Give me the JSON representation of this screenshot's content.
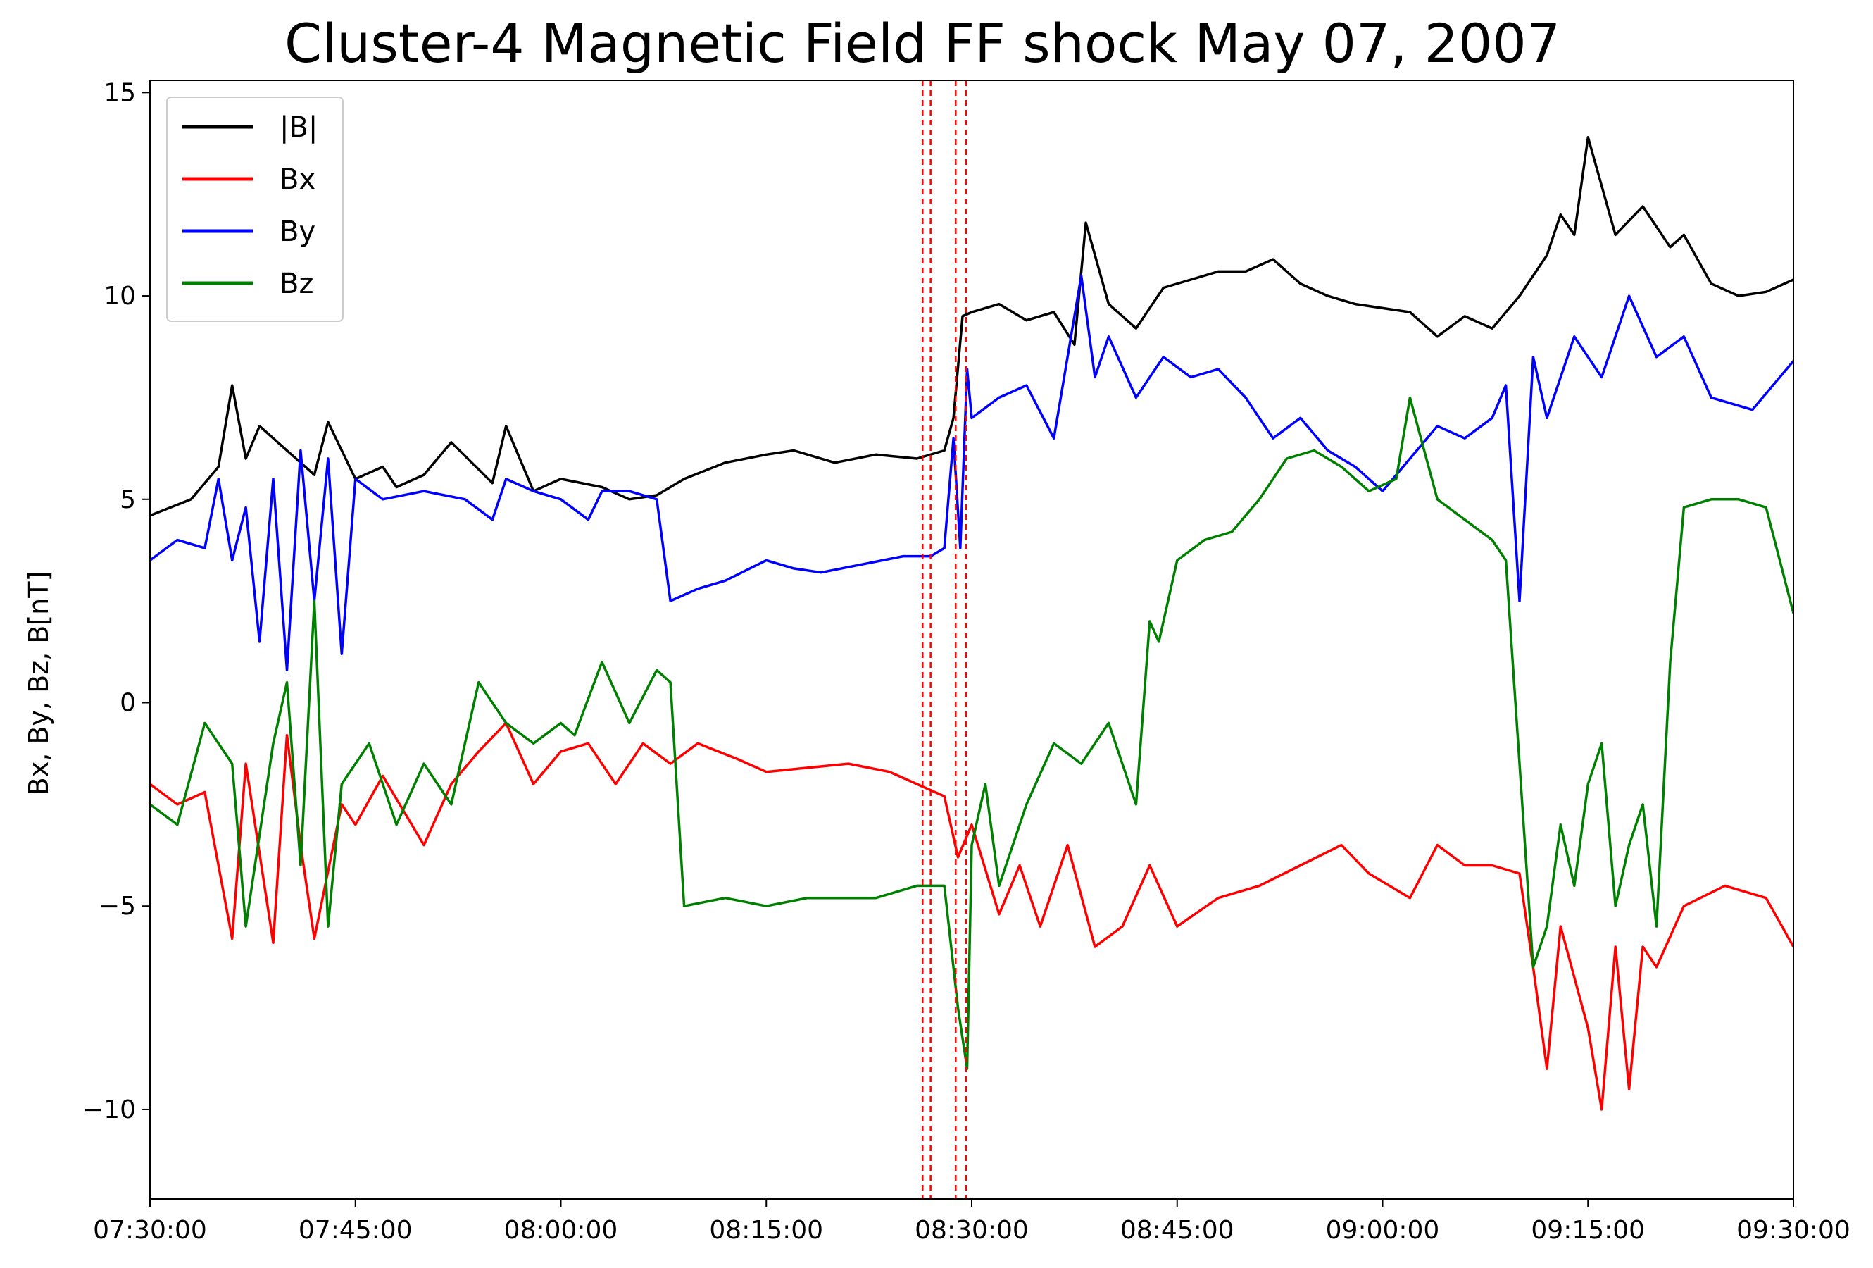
{
  "chart_data": {
    "type": "line",
    "title": "Cluster-4 Magnetic Field FF shock May 07, 2007",
    "xlabel": "",
    "ylabel": "Bx, By, Bz, B[nT]",
    "xlim": [
      "07:30:00",
      "09:30:00"
    ],
    "ylim": [
      -12.2,
      15.3
    ],
    "x_ticks": [
      "07:30:00",
      "07:45:00",
      "08:00:00",
      "08:15:00",
      "08:30:00",
      "08:45:00",
      "09:00:00",
      "09:15:00",
      "09:30:00"
    ],
    "y_ticks": [
      15,
      10,
      5,
      0,
      -5,
      -10
    ],
    "y_tick_labels": [
      "15",
      "10",
      "5",
      "0",
      "−5",
      "−10"
    ],
    "grid": false,
    "legend_position": "top-left",
    "vlines": {
      "color": "#ff0000",
      "style": "dashed",
      "x": [
        "08:26:25",
        "08:27:00",
        "08:28:50",
        "08:29:35"
      ]
    },
    "series": [
      {
        "name": "|B|",
        "color": "#000000",
        "x": [
          "07:30:00",
          "07:33:00",
          "07:35:00",
          "07:36:00",
          "07:37:00",
          "07:38:00",
          "07:40:00",
          "07:42:00",
          "07:43:00",
          "07:45:00",
          "07:47:00",
          "07:48:00",
          "07:50:00",
          "07:52:00",
          "07:55:00",
          "07:56:00",
          "07:58:00",
          "08:00:00",
          "08:03:00",
          "08:05:00",
          "08:07:00",
          "08:09:00",
          "08:12:00",
          "08:15:00",
          "08:17:00",
          "08:20:00",
          "08:23:00",
          "08:26:00",
          "08:28:00",
          "08:28:40",
          "08:29:20",
          "08:30:00",
          "08:32:00",
          "08:34:00",
          "08:36:00",
          "08:37:30",
          "08:38:20",
          "08:40:00",
          "08:42:00",
          "08:44:00",
          "08:46:00",
          "08:48:00",
          "08:50:00",
          "08:52:00",
          "08:54:00",
          "08:56:00",
          "08:58:00",
          "09:00:00",
          "09:02:00",
          "09:04:00",
          "09:06:00",
          "09:08:00",
          "09:10:00",
          "09:12:00",
          "09:13:00",
          "09:14:00",
          "09:15:00",
          "09:17:00",
          "09:19:00",
          "09:21:00",
          "09:22:00",
          "09:24:00",
          "09:26:00",
          "09:28:00",
          "09:30:00"
        ],
        "values": [
          4.6,
          5.0,
          5.8,
          7.8,
          6.0,
          6.8,
          6.2,
          5.6,
          6.9,
          5.5,
          5.8,
          5.3,
          5.6,
          6.4,
          5.4,
          6.8,
          5.2,
          5.5,
          5.3,
          5.0,
          5.1,
          5.5,
          5.9,
          6.1,
          6.2,
          5.9,
          6.1,
          6.0,
          6.2,
          7.0,
          9.5,
          9.6,
          9.8,
          9.4,
          9.6,
          8.8,
          11.8,
          9.8,
          9.2,
          10.2,
          10.4,
          10.6,
          10.6,
          10.9,
          10.3,
          10.0,
          9.8,
          9.7,
          9.6,
          9.0,
          9.5,
          9.2,
          10.0,
          11.0,
          12.0,
          11.5,
          13.9,
          11.5,
          12.2,
          11.2,
          11.5,
          10.3,
          10.0,
          10.1,
          10.4
        ]
      },
      {
        "name": "Bx",
        "color": "#ff0000",
        "x": [
          "07:30:00",
          "07:32:00",
          "07:34:00",
          "07:36:00",
          "07:37:00",
          "07:39:00",
          "07:40:00",
          "07:41:00",
          "07:42:00",
          "07:44:00",
          "07:45:00",
          "07:47:00",
          "07:50:00",
          "07:52:00",
          "07:54:00",
          "07:56:00",
          "07:58:00",
          "08:00:00",
          "08:02:00",
          "08:04:00",
          "08:06:00",
          "08:08:00",
          "08:10:00",
          "08:13:00",
          "08:15:00",
          "08:18:00",
          "08:21:00",
          "08:24:00",
          "08:26:00",
          "08:28:00",
          "08:29:00",
          "08:30:00",
          "08:32:00",
          "08:33:30",
          "08:35:00",
          "08:37:00",
          "08:39:00",
          "08:41:00",
          "08:43:00",
          "08:45:00",
          "08:48:00",
          "08:51:00",
          "08:54:00",
          "08:57:00",
          "08:59:00",
          "09:02:00",
          "09:04:00",
          "09:06:00",
          "09:08:00",
          "09:10:00",
          "09:11:00",
          "09:12:00",
          "09:13:00",
          "09:15:00",
          "09:16:00",
          "09:17:00",
          "09:18:00",
          "09:19:00",
          "09:20:00",
          "09:22:00",
          "09:25:00",
          "09:28:00",
          "09:30:00"
        ],
        "values": [
          -2.0,
          -2.5,
          -2.2,
          -5.8,
          -1.5,
          -5.9,
          -0.8,
          -3.5,
          -5.8,
          -2.5,
          -3.0,
          -1.8,
          -3.5,
          -2.0,
          -1.2,
          -0.5,
          -2.0,
          -1.2,
          -1.0,
          -2.0,
          -1.0,
          -1.5,
          -1.0,
          -1.4,
          -1.7,
          -1.6,
          -1.5,
          -1.7,
          -2.0,
          -2.3,
          -3.8,
          -3.0,
          -5.2,
          -4.0,
          -5.5,
          -3.5,
          -6.0,
          -5.5,
          -4.0,
          -5.5,
          -4.8,
          -4.5,
          -4.0,
          -3.5,
          -4.2,
          -4.8,
          -3.5,
          -4.0,
          -4.0,
          -4.2,
          -6.5,
          -9.0,
          -5.5,
          -8.0,
          -10.0,
          -6.0,
          -9.5,
          -6.0,
          -6.5,
          -5.0,
          -4.5,
          -4.8,
          -6.0
        ]
      },
      {
        "name": "By",
        "color": "#0000ff",
        "x": [
          "07:30:00",
          "07:32:00",
          "07:34:00",
          "07:35:00",
          "07:36:00",
          "07:37:00",
          "07:38:00",
          "07:39:00",
          "07:40:00",
          "07:41:00",
          "07:42:00",
          "07:43:00",
          "07:44:00",
          "07:45:00",
          "07:47:00",
          "07:50:00",
          "07:53:00",
          "07:55:00",
          "07:56:00",
          "07:58:00",
          "08:00:00",
          "08:02:00",
          "08:03:00",
          "08:05:00",
          "08:07:00",
          "08:08:00",
          "08:10:00",
          "08:12:00",
          "08:15:00",
          "08:17:00",
          "08:19:00",
          "08:22:00",
          "08:25:00",
          "08:27:00",
          "08:28:00",
          "08:28:40",
          "08:29:10",
          "08:29:40",
          "08:30:00",
          "08:32:00",
          "08:34:00",
          "08:36:00",
          "08:38:00",
          "08:39:00",
          "08:40:00",
          "08:42:00",
          "08:44:00",
          "08:46:00",
          "08:48:00",
          "08:50:00",
          "08:52:00",
          "08:54:00",
          "08:56:00",
          "08:58:00",
          "09:00:00",
          "09:02:00",
          "09:04:00",
          "09:06:00",
          "09:08:00",
          "09:09:00",
          "09:10:00",
          "09:11:00",
          "09:12:00",
          "09:14:00",
          "09:16:00",
          "09:18:00",
          "09:20:00",
          "09:22:00",
          "09:24:00",
          "09:27:00",
          "09:30:00"
        ],
        "values": [
          3.5,
          4.0,
          3.8,
          5.5,
          3.5,
          4.8,
          1.5,
          5.5,
          0.8,
          6.2,
          2.5,
          6.0,
          1.2,
          5.5,
          5.0,
          5.2,
          5.0,
          4.5,
          5.5,
          5.2,
          5.0,
          4.5,
          5.2,
          5.2,
          5.0,
          2.5,
          2.8,
          3.0,
          3.5,
          3.3,
          3.2,
          3.4,
          3.6,
          3.6,
          3.8,
          6.5,
          3.8,
          8.2,
          7.0,
          7.5,
          7.8,
          6.5,
          10.5,
          8.0,
          9.0,
          7.5,
          8.5,
          8.0,
          8.2,
          7.5,
          6.5,
          7.0,
          6.2,
          5.8,
          5.2,
          6.0,
          6.8,
          6.5,
          7.0,
          7.8,
          2.5,
          8.5,
          7.0,
          9.0,
          8.0,
          10.0,
          8.5,
          9.0,
          7.5,
          7.2,
          8.4
        ]
      },
      {
        "name": "Bz",
        "color": "#008000",
        "x": [
          "07:30:00",
          "07:32:00",
          "07:34:00",
          "07:36:00",
          "07:37:00",
          "07:39:00",
          "07:40:00",
          "07:41:00",
          "07:42:00",
          "07:43:00",
          "07:44:00",
          "07:46:00",
          "07:48:00",
          "07:50:00",
          "07:52:00",
          "07:54:00",
          "07:56:00",
          "07:58:00",
          "08:00:00",
          "08:01:00",
          "08:03:00",
          "08:05:00",
          "08:07:00",
          "08:08:00",
          "08:09:00",
          "08:12:00",
          "08:15:00",
          "08:18:00",
          "08:20:00",
          "08:23:00",
          "08:26:00",
          "08:28:00",
          "08:29:00",
          "08:29:40",
          "08:30:00",
          "08:31:00",
          "08:32:00",
          "08:34:00",
          "08:36:00",
          "08:38:00",
          "08:40:00",
          "08:42:00",
          "08:43:00",
          "08:43:40",
          "08:45:00",
          "08:47:00",
          "08:49:00",
          "08:51:00",
          "08:53:00",
          "08:55:00",
          "08:57:00",
          "08:59:00",
          "09:01:00",
          "09:02:00",
          "09:04:00",
          "09:06:00",
          "09:08:00",
          "09:09:00",
          "09:10:00",
          "09:11:00",
          "09:12:00",
          "09:13:00",
          "09:14:00",
          "09:15:00",
          "09:16:00",
          "09:17:00",
          "09:18:00",
          "09:19:00",
          "09:20:00",
          "09:21:00",
          "09:22:00",
          "09:24:00",
          "09:26:00",
          "09:28:00",
          "09:30:00"
        ],
        "values": [
          -2.5,
          -3.0,
          -0.5,
          -1.5,
          -5.5,
          -1.0,
          0.5,
          -4.0,
          2.5,
          -5.5,
          -2.0,
          -1.0,
          -3.0,
          -1.5,
          -2.5,
          0.5,
          -0.5,
          -1.0,
          -0.5,
          -0.8,
          1.0,
          -0.5,
          0.8,
          0.5,
          -5.0,
          -4.8,
          -5.0,
          -4.8,
          -4.8,
          -4.8,
          -4.5,
          -4.5,
          -7.5,
          -9.0,
          -3.5,
          -2.0,
          -4.5,
          -2.5,
          -1.0,
          -1.5,
          -0.5,
          -2.5,
          2.0,
          1.5,
          3.5,
          4.0,
          4.2,
          5.0,
          6.0,
          6.2,
          5.8,
          5.2,
          5.5,
          7.5,
          5.0,
          4.5,
          4.0,
          3.5,
          -1.5,
          -6.5,
          -5.5,
          -3.0,
          -4.5,
          -2.0,
          -1.0,
          -5.0,
          -3.5,
          -2.5,
          -5.5,
          1.0,
          4.8,
          5.0,
          5.0,
          4.8,
          2.2
        ]
      }
    ]
  }
}
